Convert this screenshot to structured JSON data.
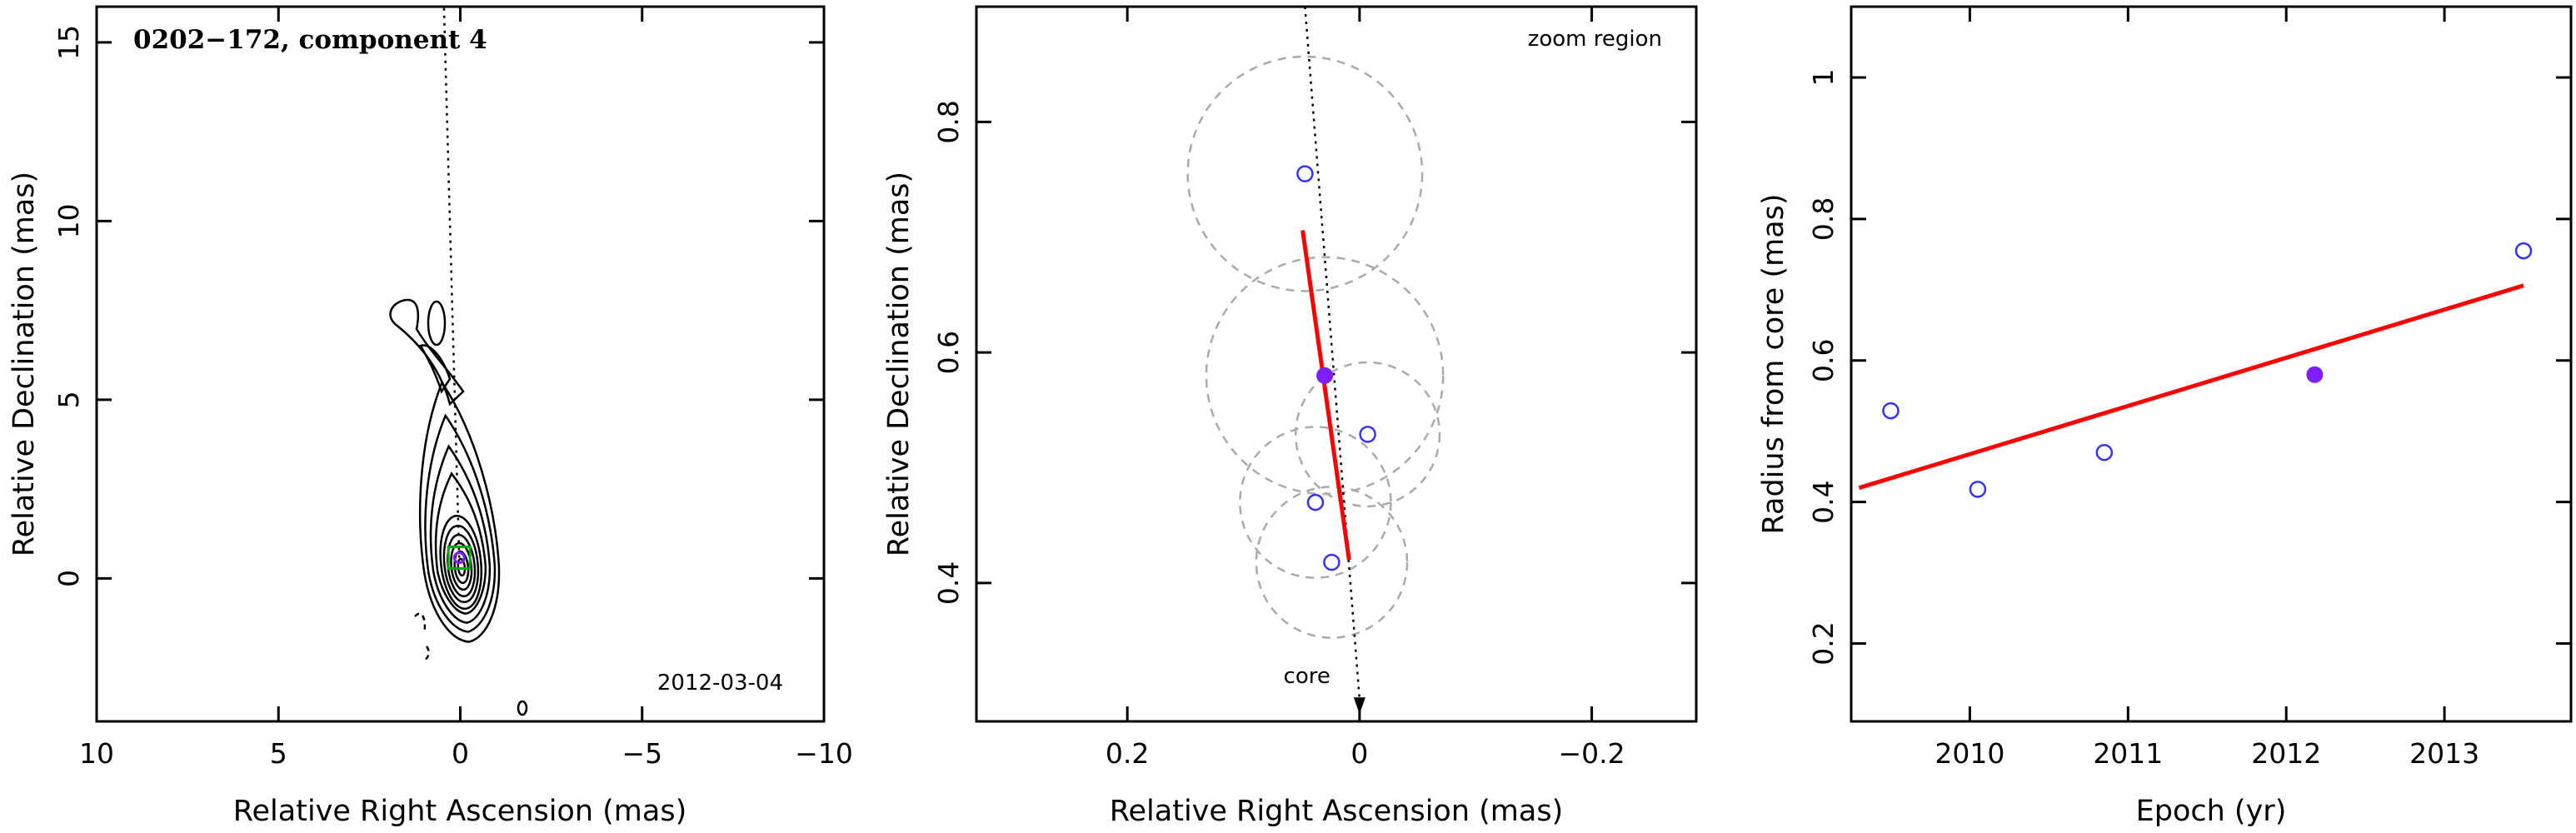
{
  "chart_data": [
    {
      "type": "contour",
      "title": "0202−172, component 4",
      "annotation": "2012-03-04",
      "xlabel": "Relative Right Ascension (mas)",
      "ylabel": "Relative Declination (mas)",
      "xlim": [
        10,
        -10
      ],
      "ylim": [
        -4,
        16
      ],
      "xticks": [
        10,
        5,
        0,
        -5,
        -10
      ],
      "yticks": [
        0,
        5,
        10,
        15
      ],
      "xtick_labels": [
        "10",
        "5",
        "0",
        "−5",
        "−10"
      ],
      "ytick_labels": [
        "0",
        "5",
        "10",
        "15"
      ],
      "component_marker": {
        "x": 0.03,
        "y": 0.58
      },
      "direction_line": {
        "from": [
          0.03,
          0.58
        ],
        "to": [
          0.45,
          16
        ]
      }
    },
    {
      "type": "scatter",
      "annotation": "zoom region",
      "core_label": "core",
      "xlabel": "Relative Right Ascension (mas)",
      "ylabel": "Relative Declination (mas)",
      "xlim": [
        0.33,
        -0.29
      ],
      "ylim": [
        0.28,
        0.9
      ],
      "xticks": [
        0.2,
        0,
        -0.2
      ],
      "yticks": [
        0.4,
        0.6,
        0.8
      ],
      "xtick_labels": [
        "0.2",
        "0",
        "−0.2"
      ],
      "ytick_labels": [
        "0.4",
        "0.6",
        "0.8"
      ],
      "positions": [
        {
          "x": 0.024,
          "y": 0.418,
          "r": 0.065
        },
        {
          "x": 0.038,
          "y": 0.47,
          "r": 0.065
        },
        {
          "x": -0.007,
          "y": 0.529,
          "r": 0.062
        },
        {
          "x": 0.03,
          "y": 0.58,
          "r": 0.102,
          "highlight": true
        },
        {
          "x": 0.047,
          "y": 0.755,
          "r": 0.101
        }
      ],
      "fit_line": {
        "from": [
          0.049,
          0.706
        ],
        "to": [
          0.009,
          0.42
        ]
      },
      "direction_line": {
        "from": [
          0.047,
          0.9
        ],
        "to": [
          0.0,
          0.295
        ]
      }
    },
    {
      "type": "scatter",
      "xlabel": "Epoch (yr)",
      "ylabel": "Radius from core (mas)",
      "xlim": [
        2009.25,
        2013.8
      ],
      "ylim": [
        0.09,
        1.1
      ],
      "xticks": [
        2010,
        2011,
        2012,
        2013
      ],
      "yticks": [
        0.2,
        0.4,
        0.6,
        0.8,
        1.0
      ],
      "xtick_labels": [
        "2010",
        "2011",
        "2012",
        "2013"
      ],
      "ytick_labels": [
        "0.2",
        "0.4",
        "0.6",
        "0.8",
        "1"
      ],
      "points": [
        {
          "x": 2009.5,
          "y": 0.529
        },
        {
          "x": 2010.05,
          "y": 0.418
        },
        {
          "x": 2010.85,
          "y": 0.47
        },
        {
          "x": 2012.18,
          "y": 0.58,
          "highlight": true
        },
        {
          "x": 2013.5,
          "y": 0.755
        }
      ],
      "fit_line": {
        "from": [
          2009.3,
          0.42
        ],
        "to": [
          2013.5,
          0.706
        ]
      }
    }
  ],
  "colors": {
    "open_marker": "#3333ff",
    "filled_marker": "#7f1fff",
    "fit_line": "#ff0000",
    "circle": "#aaaaaa",
    "box": "#00aa00",
    "axes": "#000000"
  }
}
